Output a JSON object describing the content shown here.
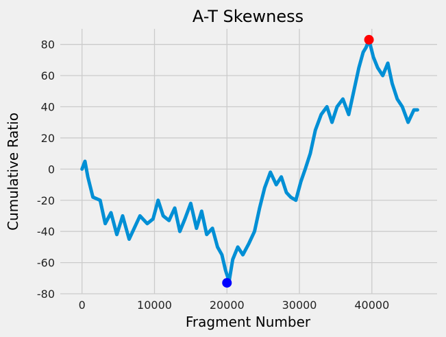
{
  "chart_data": {
    "type": "line",
    "title": "A-T Skewness",
    "xlabel": "Fragment Number",
    "ylabel": "Cumulative Ratio",
    "xlim": [
      -3000,
      49000
    ],
    "ylim": [
      -80,
      90
    ],
    "xticks": [
      0,
      10000,
      20000,
      30000,
      40000
    ],
    "yticks": [
      -80,
      -60,
      -40,
      -20,
      0,
      20,
      40,
      60,
      80
    ],
    "grid": true,
    "series": [
      {
        "color": "#008fd5",
        "x": [
          0,
          400,
          800,
          1500,
          2500,
          3200,
          4000,
          4800,
          5600,
          6500,
          7200,
          8000,
          9000,
          9800,
          10500,
          11200,
          12000,
          12800,
          13500,
          14200,
          15000,
          15800,
          16500,
          17200,
          18000,
          18700,
          19300,
          19800,
          20300,
          20800,
          21500,
          22200,
          23000,
          23800,
          24500,
          25200,
          26000,
          26800,
          27500,
          28200,
          28800,
          29500,
          30200,
          30800,
          31500,
          32200,
          33000,
          33800,
          34500,
          35200,
          36000,
          36800,
          37500,
          38200,
          38800,
          39200,
          39600,
          40200,
          40800,
          41500,
          42200,
          42800,
          43500,
          44200,
          45000,
          45800,
          46300
        ],
        "values": [
          0,
          5,
          -5,
          -18,
          -20,
          -35,
          -28,
          -42,
          -30,
          -45,
          -38,
          -30,
          -35,
          -32,
          -20,
          -30,
          -33,
          -25,
          -40,
          -32,
          -22,
          -38,
          -27,
          -42,
          -38,
          -50,
          -55,
          -65,
          -72,
          -58,
          -50,
          -55,
          -48,
          -40,
          -25,
          -12,
          -2,
          -10,
          -5,
          -15,
          -18,
          -20,
          -8,
          0,
          10,
          25,
          35,
          40,
          30,
          40,
          45,
          35,
          50,
          65,
          75,
          78,
          83,
          72,
          65,
          60,
          68,
          55,
          45,
          40,
          30,
          38,
          38
        ]
      }
    ],
    "markers": [
      {
        "x": 39600,
        "y": 83,
        "color": "#ff0000"
      },
      {
        "x": 20000,
        "y": -73,
        "color": "#0000ff"
      }
    ]
  }
}
